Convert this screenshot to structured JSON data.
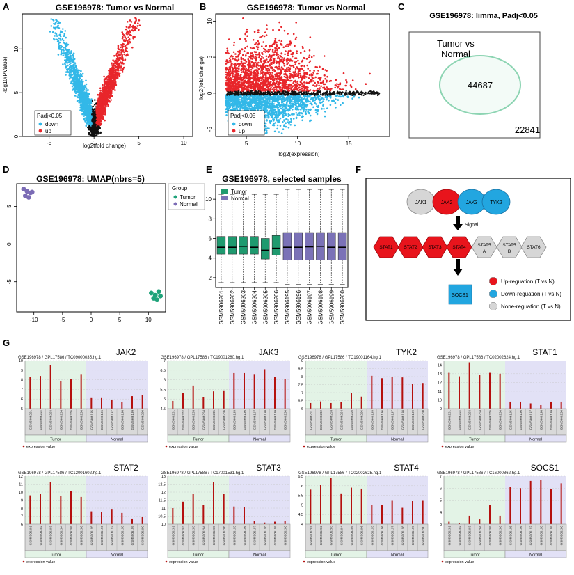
{
  "panel_letters": [
    "A",
    "B",
    "C",
    "D",
    "E",
    "F",
    "G"
  ],
  "volcano": {
    "title": "GSE196978: Tumor vs Normal",
    "xlabel": "log2(fold change)",
    "ylabel": "-log10(PValue)",
    "xticks": [
      "-5",
      "0",
      "5",
      "10"
    ],
    "yticks": [
      "0",
      "5",
      "10"
    ],
    "legend_title": "Padj<0.05",
    "legend": [
      {
        "label": "down",
        "color": "#33b8e8"
      },
      {
        "label": "up",
        "color": "#e8262b"
      }
    ]
  },
  "ma": {
    "title": "GSE196978: Tumor vs Normal",
    "xlabel": "log2(expression)",
    "ylabel": "log2(fold change)",
    "xticks": [
      "5",
      "10",
      "15"
    ],
    "yticks": [
      "-5",
      "0",
      "5",
      "10"
    ],
    "legend_title": "Padj<0.05",
    "legend": [
      {
        "label": "down",
        "color": "#33b8e8"
      },
      {
        "label": "up",
        "color": "#e8262b"
      }
    ]
  },
  "venn": {
    "title": "GSE196978: limma, Padj<0.05",
    "set_label_line1": "Tumor vs",
    "set_label_line2": "Normal",
    "inside": "44687",
    "outside": "22841"
  },
  "umap": {
    "title": "GSE196978: UMAP(nbrs=5)",
    "xticks": [
      "-10",
      "-5",
      "0",
      "5",
      "10"
    ],
    "yticks": [
      "-5",
      "0",
      "5"
    ],
    "legend_title": "Group",
    "legend": [
      {
        "label": "Tumor",
        "color": "#1fa37a"
      },
      {
        "label": "Normal",
        "color": "#7b6bb5"
      }
    ]
  },
  "boxplot": {
    "title": "GSE196978, selected samples",
    "legend": [
      {
        "label": "Tumor",
        "color": "#1f9a6f"
      },
      {
        "label": "Normal",
        "color": "#7b72b7"
      }
    ],
    "yticks": [
      "2",
      "4",
      "6",
      "8",
      "10"
    ],
    "samples": [
      "GSM5906201",
      "GSM5906202",
      "GSM5906203",
      "GSM5906204",
      "GSM5906205",
      "GSM5906206",
      "GSM5906195",
      "GSM5906196",
      "GSM5906197",
      "GSM5906198",
      "GSM5906199",
      "GSM5906200"
    ]
  },
  "pathway": {
    "row1": [
      {
        "label": "JAK1",
        "type": "none"
      },
      {
        "label": "JAK2",
        "type": "up"
      },
      {
        "label": "JAK3",
        "type": "down"
      },
      {
        "label": "TYK2",
        "type": "down"
      }
    ],
    "signal": "Signal",
    "row2": [
      {
        "label": "STAT1",
        "type": "up"
      },
      {
        "label": "STAT2",
        "type": "up"
      },
      {
        "label": "STAT3",
        "type": "up"
      },
      {
        "label": "STAT4",
        "type": "up"
      },
      {
        "label": "STAT5 A",
        "type": "none"
      },
      {
        "label": "STAT5 B",
        "type": "none"
      },
      {
        "label": "STAT6",
        "type": "none"
      }
    ],
    "socs": "SOCS1",
    "legend": [
      {
        "label": "Up-reguation (T vs N)",
        "color": "#e8141c"
      },
      {
        "label": "Down-reguation (T vs N)",
        "color": "#22a6e0"
      },
      {
        "label": "None-reguation (T vs N)",
        "color": "#d6d6d6"
      }
    ]
  },
  "geo_panels": {
    "samples": [
      "GSM5906201",
      "GSM5906202",
      "GSM5906203",
      "GSM5906204",
      "GSM5906205",
      "GSM5906206",
      "GSM5906195",
      "GSM5906196",
      "GSM5906197",
      "GSM5906198",
      "GSM5906199",
      "GSM5906200"
    ],
    "group_tumor": "Tumor",
    "group_normal": "Normal",
    "legend": "expression value",
    "panels": [
      {
        "gene": "JAK2",
        "subtitle": "GSE196978 / GPL17586 / TC09000035.hg.1",
        "ymin": 5,
        "ymax": 10,
        "yticks": [
          5,
          6,
          7,
          8,
          9,
          10
        ],
        "values": [
          8.3,
          8.4,
          9.5,
          7.9,
          8.1,
          8.6,
          6.1,
          6.1,
          5.9,
          5.7,
          6.3,
          6.4
        ]
      },
      {
        "gene": "JAK3",
        "subtitle": "GSE196978 / GPL17586 / TC19001280.hg.1",
        "ymin": 4.5,
        "ymax": 7,
        "yticks": [
          4.5,
          5,
          5.5,
          6,
          6.5,
          7
        ],
        "values": [
          4.9,
          5.3,
          5.7,
          5.1,
          5.4,
          5.45,
          6.35,
          6.35,
          6.3,
          6.55,
          6.15,
          6.05
        ]
      },
      {
        "gene": "TYK2",
        "subtitle": "GSE196978 / GPL17586 / TC19001164.hg.1",
        "ymin": 6,
        "ymax": 9,
        "yticks": [
          6,
          6.5,
          7,
          7.5,
          8,
          8.5,
          9
        ],
        "values": [
          6.35,
          6.45,
          6.35,
          6.4,
          7.0,
          6.75,
          8.05,
          7.9,
          8.0,
          7.95,
          7.55,
          7.6
        ]
      },
      {
        "gene": "STAT1",
        "subtitle": "GSE196978 / GPL17586 / TC02002624.hg.1",
        "ymin": 9,
        "ymax": 14.5,
        "yticks": [
          9,
          10,
          11,
          12,
          13,
          14
        ],
        "values": [
          13.1,
          12.7,
          14.3,
          12.9,
          13.1,
          13.0,
          9.8,
          9.8,
          9.6,
          9.4,
          9.8,
          9.8
        ]
      },
      {
        "gene": "STAT2",
        "subtitle": "GSE196978 / GPL17586 / TC12001602.hg.1",
        "ymin": 6,
        "ymax": 12,
        "yticks": [
          6,
          7,
          8,
          9,
          10,
          11,
          12
        ],
        "values": [
          9.6,
          9.8,
          11.3,
          9.5,
          10.1,
          9.4,
          7.6,
          7.5,
          7.9,
          7.4,
          6.7,
          6.9
        ]
      },
      {
        "gene": "STAT3",
        "subtitle": "GSE196978 / GPL17586 / TC17001531.hg.1",
        "ymin": 10,
        "ymax": 13,
        "yticks": [
          10,
          10.5,
          11,
          11.5,
          12,
          12.5,
          13
        ],
        "values": [
          11.0,
          11.4,
          11.9,
          11.2,
          12.65,
          11.9,
          11.1,
          11.05,
          10.2,
          10.1,
          10.15,
          10.2
        ]
      },
      {
        "gene": "STAT4",
        "subtitle": "GSE196978 / GPL17586 / TC02002625.hg.1",
        "ymin": 4,
        "ymax": 6.5,
        "yticks": [
          4,
          4.5,
          5,
          5.5,
          6,
          6.5
        ],
        "values": [
          5.8,
          6.05,
          6.4,
          5.6,
          5.9,
          5.85,
          5.0,
          5.0,
          5.25,
          4.85,
          5.2,
          5.25
        ]
      },
      {
        "gene": "SOCS1",
        "subtitle": "GSE196978 / GPL17586 / TC16000862.hg.1",
        "ymin": 3,
        "ymax": 7,
        "yticks": [
          3,
          4,
          5,
          6,
          7
        ],
        "values": [
          3.2,
          3.1,
          3.7,
          3.4,
          4.6,
          3.7,
          6.1,
          6.0,
          6.6,
          6.7,
          5.9,
          6.4
        ]
      }
    ]
  },
  "chart_data": [
    {
      "type": "scatter",
      "title": "GSE196978: Tumor vs Normal",
      "xlabel": "log2(fold change)",
      "ylabel": "-log10(PValue)",
      "xlim": [
        -8,
        11
      ],
      "ylim": [
        0,
        14
      ],
      "series": [
        {
          "name": "down",
          "color": "#33b8e8"
        },
        {
          "name": "up",
          "color": "#e8262b"
        }
      ]
    },
    {
      "type": "scatter",
      "title": "GSE196978: Tumor vs Normal",
      "xlabel": "log2(expression)",
      "ylabel": "log2(fold change)",
      "xlim": [
        2,
        19
      ],
      "ylim": [
        -6,
        11
      ],
      "series": [
        {
          "name": "down",
          "color": "#33b8e8"
        },
        {
          "name": "up",
          "color": "#e8262b"
        }
      ]
    },
    {
      "type": "scatter",
      "title": "GSE196978: UMAP(nbrs=5)",
      "xlim": [
        -13,
        13
      ],
      "ylim": [
        -9,
        8
      ],
      "series": [
        {
          "name": "Tumor",
          "x": [
            10.5,
            11.2,
            11.8,
            10.9,
            12.1,
            11.5
          ],
          "y": [
            -6.5,
            -6.8,
            -6.3,
            -7.2,
            -6.9,
            -7.4
          ]
        },
        {
          "name": "Normal",
          "x": [
            -11.8,
            -11.2,
            -10.6,
            -11.5,
            -10.9,
            -10.3
          ],
          "y": [
            7.3,
            7.0,
            6.8,
            6.4,
            6.2,
            6.9
          ]
        }
      ]
    },
    {
      "type": "box",
      "title": "GSE196978, selected samples",
      "categories": [
        "GSM5906201",
        "GSM5906202",
        "GSM5906203",
        "GSM5906204",
        "GSM5906205",
        "GSM5906206",
        "GSM5906195",
        "GSM5906196",
        "GSM5906197",
        "GSM5906198",
        "GSM5906199",
        "GSM5906200"
      ],
      "groups": [
        "Tumor",
        "Tumor",
        "Tumor",
        "Tumor",
        "Tumor",
        "Tumor",
        "Normal",
        "Normal",
        "Normal",
        "Normal",
        "Normal",
        "Normal"
      ],
      "q1": [
        4.4,
        4.4,
        4.4,
        4.4,
        3.9,
        4.3,
        3.8,
        3.8,
        3.8,
        3.8,
        3.8,
        3.8
      ],
      "median": [
        5.1,
        5.1,
        5.2,
        5.1,
        4.8,
        5.0,
        5.1,
        5.1,
        5.15,
        5.2,
        5.1,
        5.1
      ],
      "q3": [
        6.2,
        6.2,
        6.2,
        6.2,
        6.0,
        6.3,
        6.6,
        6.6,
        6.6,
        6.6,
        6.6,
        6.6
      ],
      "whisker_low": [
        1.5,
        1.5,
        1.5,
        1.5,
        1.5,
        1.5,
        1.3,
        1.3,
        1.3,
        1.3,
        1.3,
        1.3
      ],
      "whisker_high": [
        10.5,
        10.5,
        10.5,
        10.5,
        10.5,
        10.5,
        11,
        11,
        11,
        11,
        11,
        11
      ],
      "ylim": [
        1,
        11.5
      ]
    }
  ]
}
